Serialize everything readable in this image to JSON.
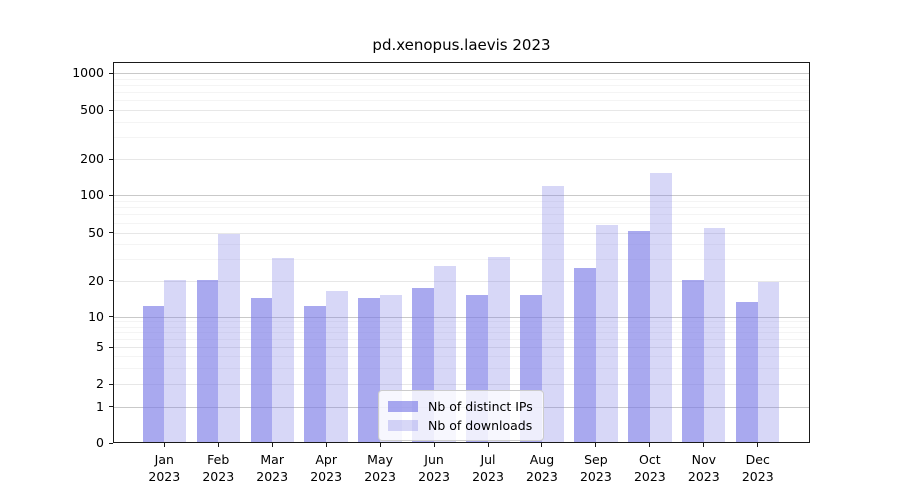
{
  "chart_data": {
    "type": "bar",
    "title": "pd.xenopus.laevis 2023",
    "categories": [
      "Jan",
      "Feb",
      "Mar",
      "Apr",
      "May",
      "Jun",
      "Jul",
      "Aug",
      "Sep",
      "Oct",
      "Nov",
      "Dec"
    ],
    "category_year": "2023",
    "series": [
      {
        "name": "Nb of distinct IPs",
        "color": "rgba(123,123,230,0.65)",
        "rendered_color": "#a9a9ee",
        "values": [
          12,
          20,
          14,
          12,
          14,
          17,
          15,
          15,
          25,
          51,
          20,
          13
        ]
      },
      {
        "name": "Nb of downloads",
        "color": "rgba(123,123,230,0.30)",
        "rendered_color": "#dadaf8",
        "values": [
          20,
          48,
          30,
          16,
          15,
          26,
          31,
          117,
          57,
          150,
          54,
          19
        ]
      }
    ],
    "yscale": "symlog",
    "ylim": [
      0,
      1200
    ],
    "yticks": [
      0,
      1,
      2,
      5,
      10,
      20,
      50,
      100,
      200,
      500,
      1000
    ],
    "grid": true,
    "legend_position": "lower-center"
  },
  "colors": {
    "grid_major": "#c9c9c9",
    "grid_mid": "#e7e7e7",
    "grid_minor": "#f4f4f4",
    "spine": "#1a1a1a",
    "legend_border": "#cccccc"
  }
}
